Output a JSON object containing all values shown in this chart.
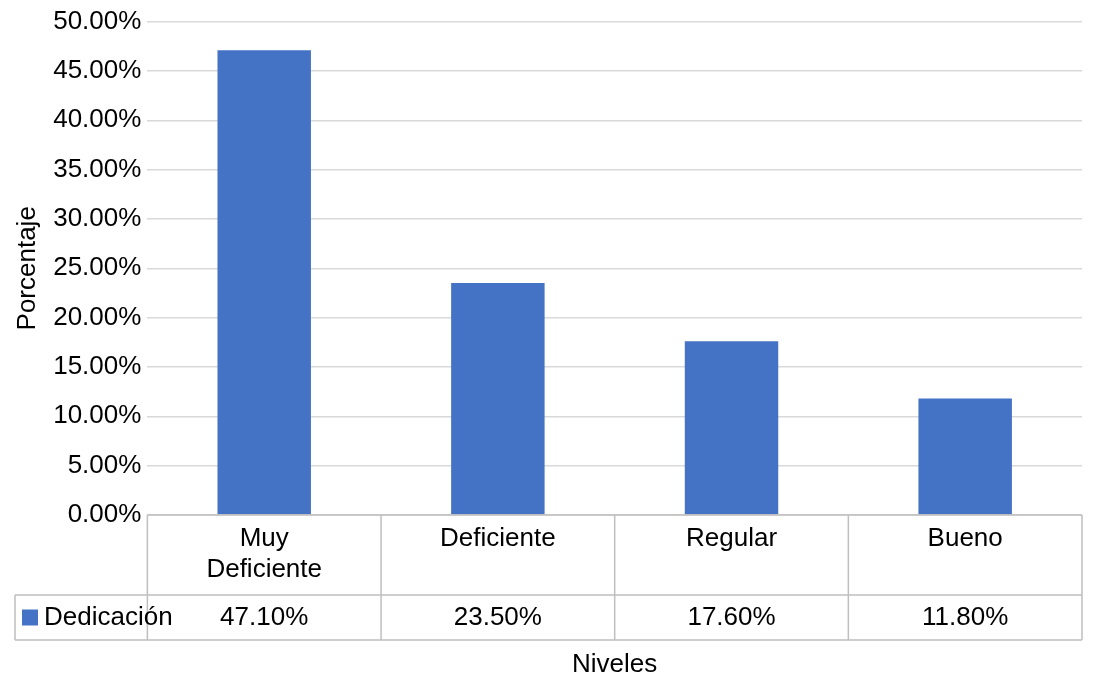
{
  "chart_data": {
    "type": "bar",
    "xlabel": "Niveles",
    "ylabel": "Porcentaje",
    "categories": [
      "Muy Deficiente",
      "Deficiente",
      "Regular",
      "Bueno"
    ],
    "series": [
      {
        "name": "Dedicación",
        "color": "#4472c4",
        "values": [
          47.1,
          23.5,
          17.6,
          11.8
        ],
        "value_labels": [
          "47.10%",
          "23.50%",
          "17.60%",
          "11.80%"
        ]
      }
    ],
    "ylim": [
      0,
      50
    ],
    "yticks": [
      {
        "value": 0,
        "label": "0.00%"
      },
      {
        "value": 5,
        "label": "5.00%"
      },
      {
        "value": 10,
        "label": "10.00%"
      },
      {
        "value": 15,
        "label": "15.00%"
      },
      {
        "value": 20,
        "label": "20.00%"
      },
      {
        "value": 25,
        "label": "25.00%"
      },
      {
        "value": 30,
        "label": "30.00%"
      },
      {
        "value": 35,
        "label": "35.00%"
      },
      {
        "value": 40,
        "label": "40.00%"
      },
      {
        "value": 45,
        "label": "45.00%"
      },
      {
        "value": 50,
        "label": "50.00%"
      }
    ],
    "grid": "y",
    "legend": "bottom"
  }
}
